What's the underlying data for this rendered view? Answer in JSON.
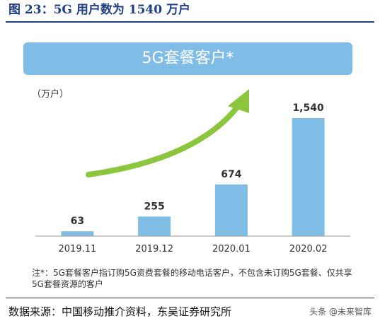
{
  "figure": {
    "title": "图 23：5G 用户数为 1540 万户",
    "source": "数据来源：中国移动推介资料，东吴证券研究所",
    "watermark": "头条 @未来智库"
  },
  "colors": {
    "bar": "#7fbde7",
    "arrow": "#8cc63f",
    "title": "#1f3f86"
  },
  "chart_data": {
    "type": "bar",
    "title": "5G套餐客户*",
    "ylabel": "（万户）",
    "categories": [
      "2019.11",
      "2019.12",
      "2020.01",
      "2020.02"
    ],
    "values": [
      63,
      255,
      674,
      1540
    ],
    "data_labels": [
      "63",
      "255",
      "674",
      "1,540"
    ],
    "ylim": [
      0,
      1540
    ],
    "grid": false,
    "legend": "none",
    "note": "注*：5G套餐客户指订购5G资费套餐的移动电话客户，不包含未订购5G套餐、仅共享5G套餐资源的客户",
    "annotation": "upward growth arrow"
  }
}
